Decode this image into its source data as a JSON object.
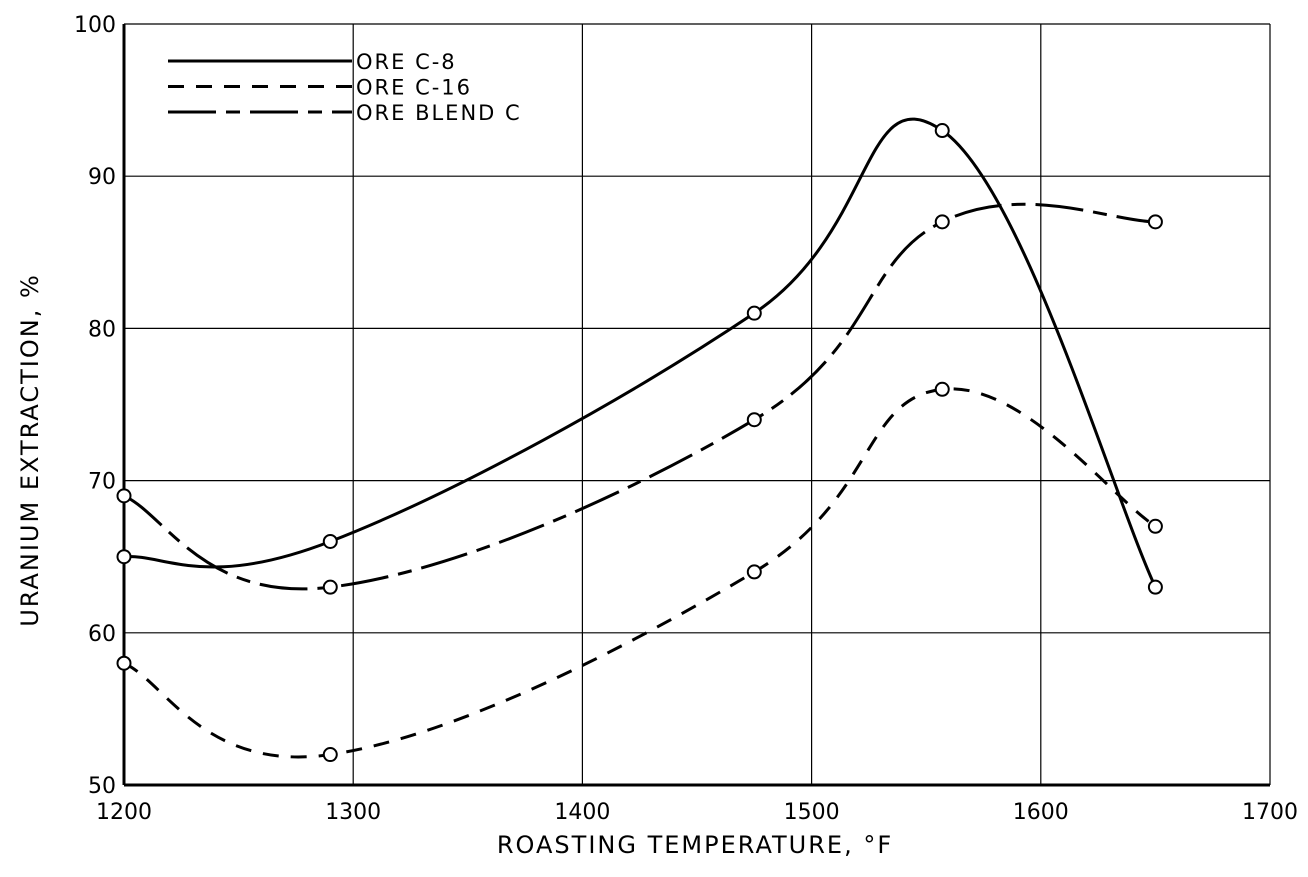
{
  "chart_data": {
    "type": "line",
    "title": "",
    "xlabel": "ROASTING TEMPERATURE, °F",
    "ylabel": "URANIUM EXTRACTION, %",
    "xlim": [
      1200,
      1700
    ],
    "ylim": [
      50,
      100
    ],
    "x_ticks": [
      1200,
      1300,
      1400,
      1500,
      1600,
      1700
    ],
    "y_ticks": [
      50,
      60,
      70,
      80,
      90,
      100
    ],
    "grid": true,
    "legend_position": "top-left",
    "series": [
      {
        "name": "ORE C-8",
        "line_style": "solid",
        "points": [
          [
            1200,
            65
          ],
          [
            1290,
            66
          ],
          [
            1475,
            81
          ],
          [
            1557,
            93
          ],
          [
            1650,
            63
          ]
        ]
      },
      {
        "name": "ORE C-16",
        "line_style": "dashed",
        "points": [
          [
            1200,
            58
          ],
          [
            1290,
            52
          ],
          [
            1475,
            64
          ],
          [
            1557,
            76
          ],
          [
            1650,
            67
          ]
        ]
      },
      {
        "name": "ORE BLEND C",
        "line_style": "long-short dash",
        "points": [
          [
            1200,
            69
          ],
          [
            1290,
            63
          ],
          [
            1475,
            74
          ],
          [
            1557,
            87
          ],
          [
            1650,
            87
          ]
        ]
      }
    ]
  }
}
